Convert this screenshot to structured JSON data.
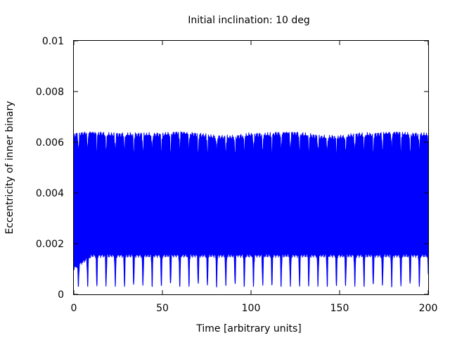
{
  "chart_data": {
    "type": "line",
    "title": "Initial inclination: 10 deg",
    "xlabel": "Time [arbitrary units]",
    "ylabel": "Eccentricity of inner binary",
    "xlim": [
      0,
      200
    ],
    "ylim": [
      0,
      0.01
    ],
    "x_ticks": [
      0,
      50,
      100,
      150,
      200
    ],
    "x_tick_labels": [
      "0",
      "50",
      "100",
      "150",
      "200"
    ],
    "y_ticks": [
      0,
      0.002,
      0.004,
      0.006,
      0.008,
      0.01
    ],
    "y_tick_labels": [
      "0",
      "0.002",
      "0.004",
      "0.006",
      "0.008",
      "0.01"
    ],
    "grid": false,
    "legend": "none",
    "series": [
      {
        "color": "#0000ff",
        "description": "rapid oscillation filling a band; upper envelope ~0.0054-0.0063, lower envelope ~0.0003-0.0017, periodic dips roughly every 5 time units",
        "upper_envelope": {
          "x": [
            0,
            10,
            20,
            30,
            40,
            50,
            60,
            70,
            80,
            90,
            100,
            110,
            120,
            130,
            140,
            150,
            160,
            170,
            180,
            190,
            200
          ],
          "y": [
            0.0062,
            0.0063,
            0.0062,
            0.0062,
            0.0062,
            0.0062,
            0.0063,
            0.0062,
            0.0061,
            0.0061,
            0.0062,
            0.0062,
            0.0063,
            0.0062,
            0.0061,
            0.0061,
            0.0062,
            0.0062,
            0.0063,
            0.0062,
            0.0062
          ]
        },
        "lower_envelope": {
          "x": [
            0,
            10,
            20,
            30,
            40,
            50,
            60,
            70,
            80,
            90,
            100,
            110,
            120,
            130,
            140,
            150,
            160,
            170,
            180,
            190,
            200
          ],
          "y": [
            0.0011,
            0.0016,
            0.0016,
            0.0016,
            0.0016,
            0.0016,
            0.0016,
            0.0016,
            0.0016,
            0.0016,
            0.0016,
            0.0016,
            0.0016,
            0.0016,
            0.0016,
            0.0016,
            0.0016,
            0.0016,
            0.0016,
            0.0016,
            0.0016
          ]
        },
        "band_core": [
          0.0016,
          0.0054
        ],
        "upper_spike_max": 0.0064,
        "lower_dip_min": 0.0003,
        "dip_period": 5.2
      }
    ]
  }
}
